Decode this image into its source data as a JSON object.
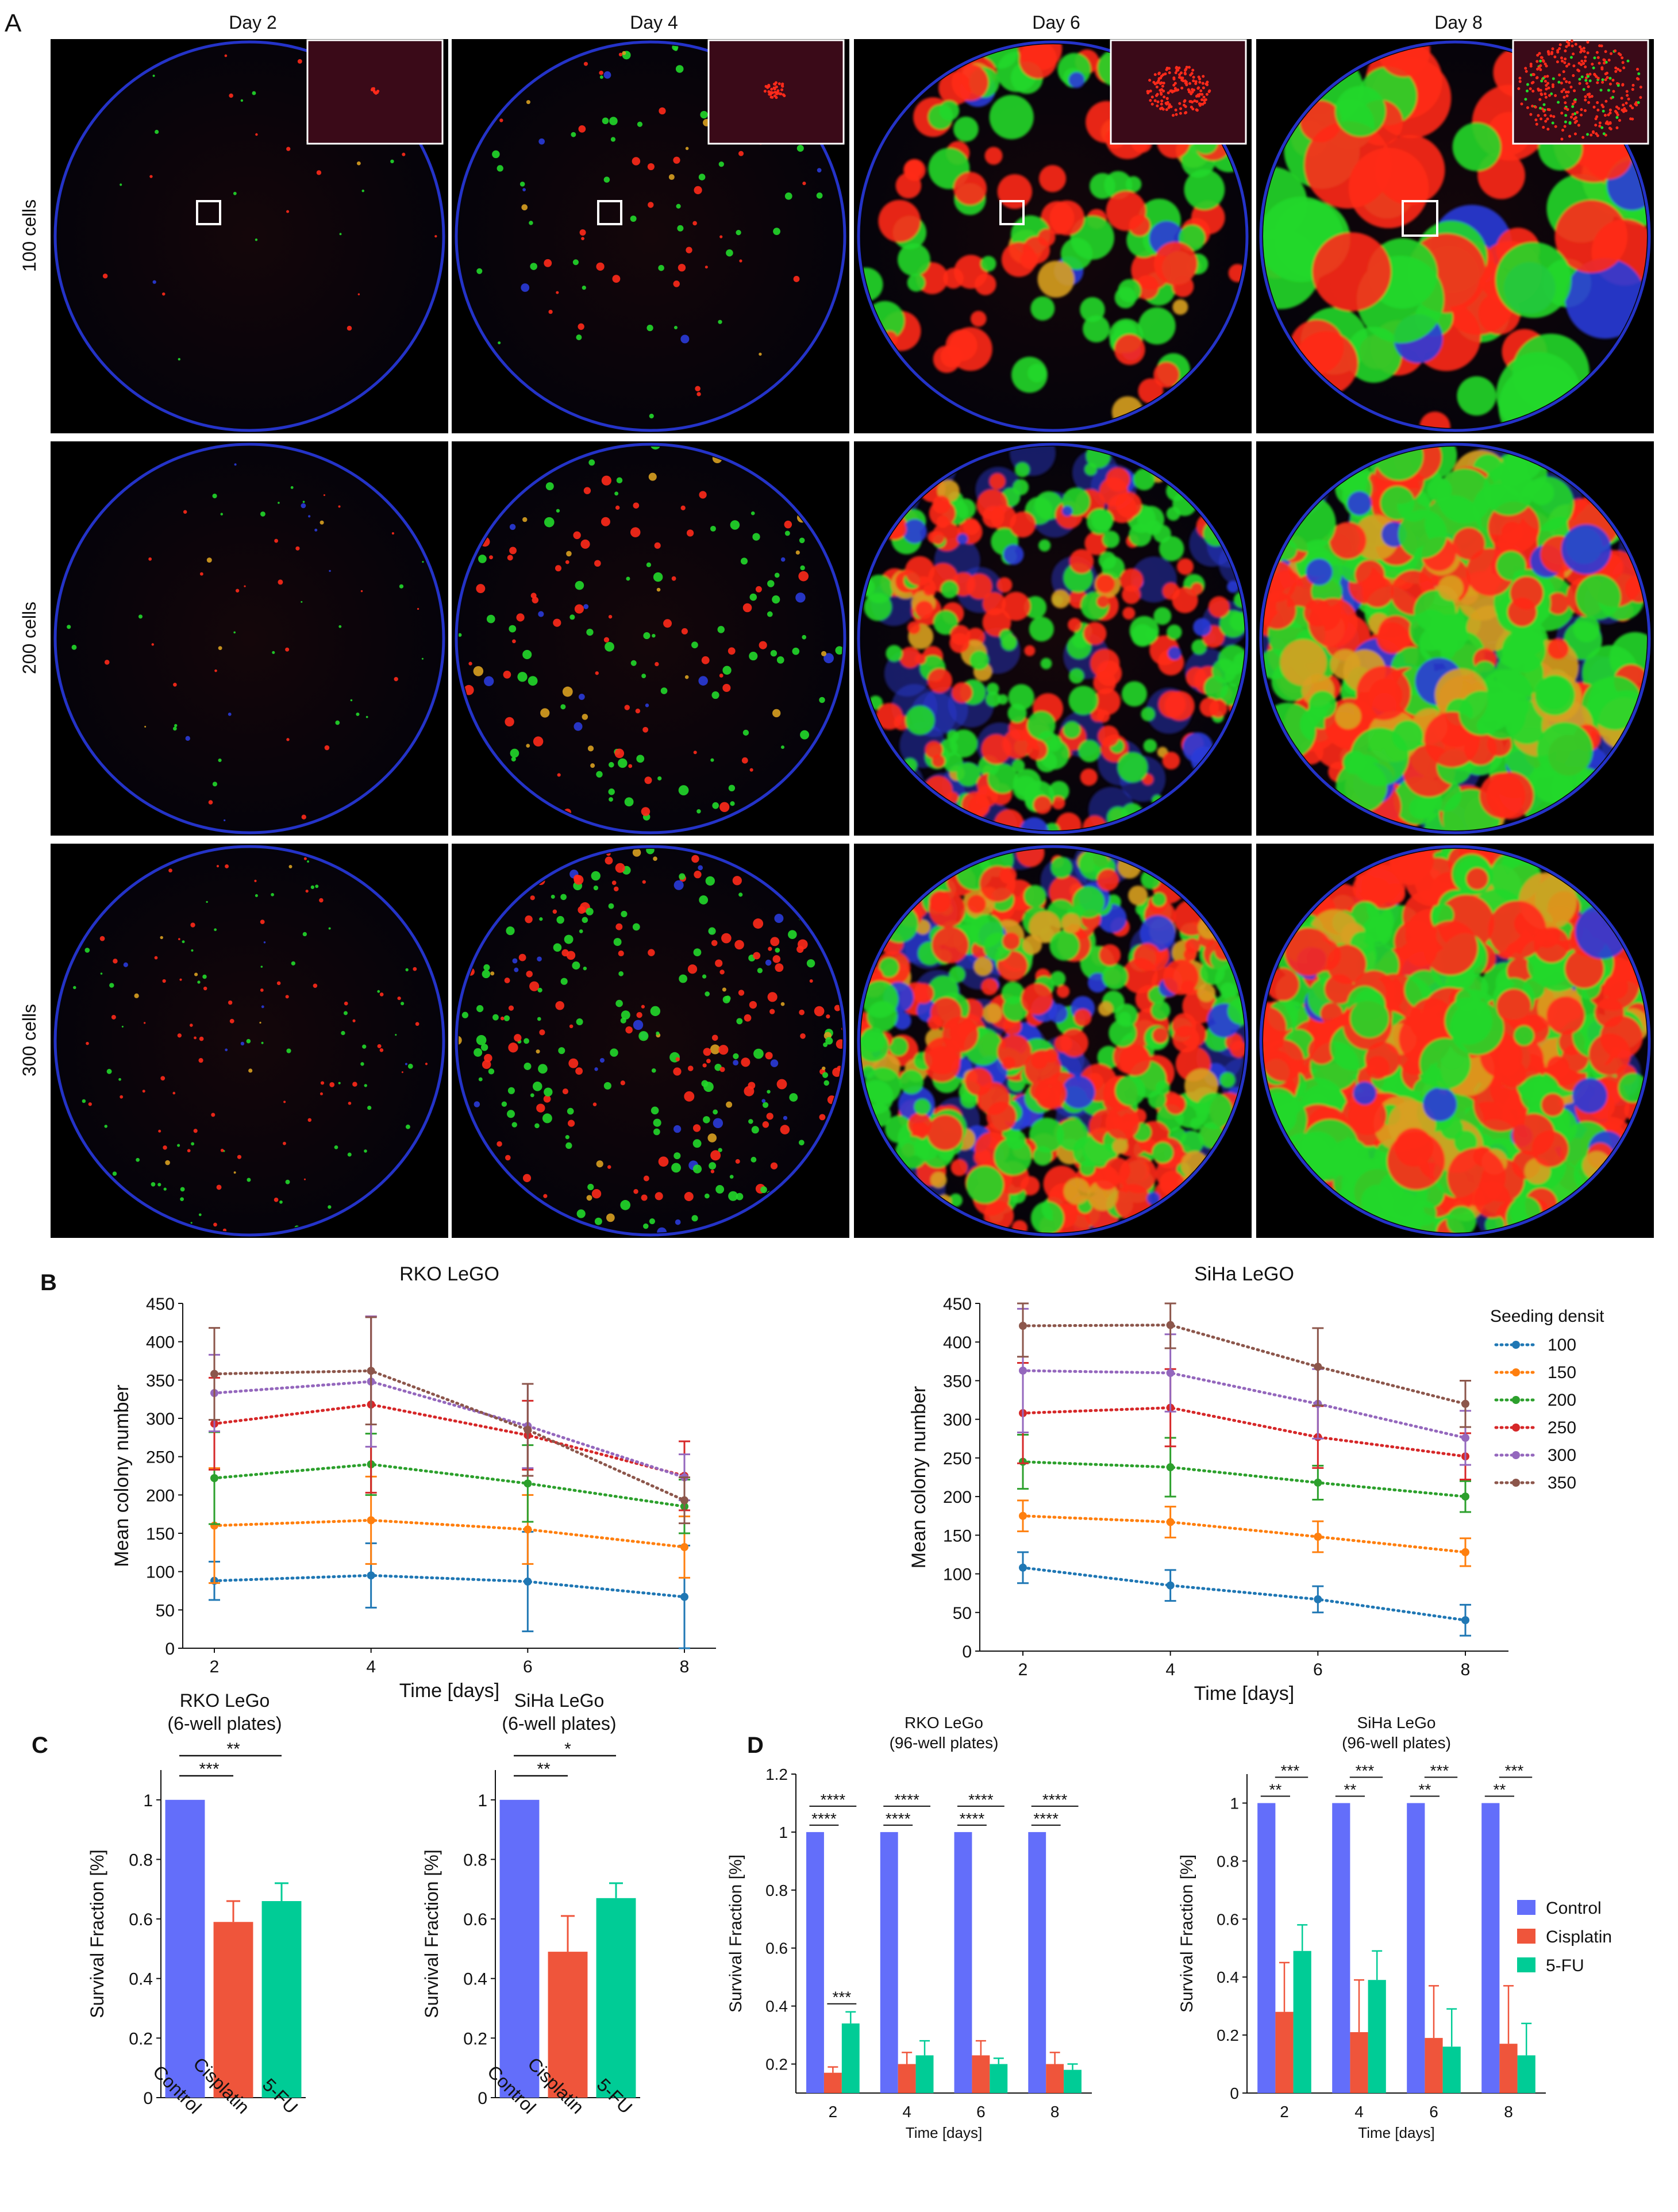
{
  "panel_letters": {
    "a": "A",
    "b": "B",
    "c": "C",
    "d": "D"
  },
  "panel_a": {
    "day_labels": [
      "Day 2",
      "Day 4",
      "Day 6",
      "Day 8"
    ],
    "row_labels": [
      "100 cells",
      "200 cells",
      "300 cells"
    ],
    "colors": {
      "red": "#ff2a1a",
      "green": "#22d82a",
      "blue": "#2a3bd8",
      "orange": "#d8a020",
      "well_rim": "#2433c8"
    },
    "insets_on_first_row": true
  },
  "panel_b": {
    "legend_title": "Seeding densit",
    "legend_labels": [
      "100",
      "150",
      "200",
      "250",
      "300",
      "350"
    ]
  },
  "colors": {
    "s100": "#1f77b4",
    "s150": "#ff7f0e",
    "s200": "#2ca02c",
    "s250": "#d62728",
    "s300": "#9467bd",
    "s350": "#8c564b",
    "control": "#636efa",
    "cisplatin": "#ef553b",
    "fu": "#00cc96"
  },
  "panel_d_legend": [
    "Control",
    "Cisplatin",
    "5-FU"
  ],
  "chart_data": [
    {
      "id": "b_rko",
      "type": "line",
      "title": "RKO LeGO",
      "xlabel": "Time [days]",
      "ylabel": "Mean colony number",
      "x": [
        2,
        4,
        6,
        8
      ],
      "ylim": [
        0,
        450
      ],
      "yticks": [
        0,
        50,
        100,
        150,
        200,
        250,
        300,
        350,
        400,
        450
      ],
      "series": [
        {
          "name": "100",
          "values": [
            88,
            95,
            87,
            67
          ],
          "errors": [
            25,
            42,
            65,
            67
          ]
        },
        {
          "name": "150",
          "values": [
            160,
            167,
            155,
            132
          ],
          "errors": [
            75,
            57,
            45,
            40
          ]
        },
        {
          "name": "200",
          "values": [
            222,
            240,
            215,
            185
          ],
          "errors": [
            60,
            40,
            50,
            35
          ]
        },
        {
          "name": "250",
          "values": [
            293,
            318,
            278,
            225
          ],
          "errors": [
            60,
            115,
            45,
            45
          ]
        },
        {
          "name": "300",
          "values": [
            333,
            348,
            290,
            223
          ],
          "errors": [
            50,
            85,
            55,
            30
          ]
        },
        {
          "name": "350",
          "values": [
            358,
            362,
            285,
            193
          ],
          "errors": [
            60,
            70,
            60,
            30
          ]
        }
      ]
    },
    {
      "id": "b_siha",
      "type": "line",
      "title": "SiHa LeGO",
      "xlabel": "Time [days]",
      "ylabel": "Mean colony number",
      "x": [
        2,
        4,
        6,
        8
      ],
      "ylim": [
        0,
        450
      ],
      "yticks": [
        0,
        50,
        100,
        150,
        200,
        250,
        300,
        350,
        400,
        450
      ],
      "legend": "right",
      "series": [
        {
          "name": "100",
          "values": [
            108,
            85,
            67,
            40
          ],
          "errors": [
            20,
            20,
            17,
            20
          ]
        },
        {
          "name": "150",
          "values": [
            175,
            167,
            148,
            128
          ],
          "errors": [
            20,
            20,
            20,
            18
          ]
        },
        {
          "name": "200",
          "values": [
            245,
            238,
            218,
            200
          ],
          "errors": [
            35,
            38,
            22,
            20
          ]
        },
        {
          "name": "250",
          "values": [
            308,
            315,
            277,
            252
          ],
          "errors": [
            65,
            50,
            40,
            30
          ]
        },
        {
          "name": "300",
          "values": [
            363,
            360,
            320,
            276
          ],
          "errors": [
            80,
            50,
            45,
            35
          ]
        },
        {
          "name": "350",
          "values": [
            421,
            422,
            368,
            320
          ],
          "errors": [
            40,
            30,
            50,
            30
          ]
        }
      ]
    },
    {
      "id": "c_rko",
      "type": "bar",
      "title": "RKO LeGo",
      "subtitle": "(6-well plates)",
      "ylabel": "Survival Fraction [%]",
      "categories": [
        "Control",
        "Cisplatin",
        "5-FU"
      ],
      "values": [
        1.0,
        0.59,
        0.66
      ],
      "errors": [
        0,
        0.07,
        0.06
      ],
      "ylim": [
        0,
        1.1
      ],
      "yticks": [
        0,
        0.2,
        0.4,
        0.6,
        0.8,
        1
      ],
      "ytick_labels": [
        "0",
        "0.2",
        "0.4",
        "0.6",
        "0.8",
        "1"
      ],
      "significance": [
        {
          "from": 0,
          "to": 1,
          "label": "***"
        },
        {
          "from": 0,
          "to": 2,
          "label": "**"
        }
      ]
    },
    {
      "id": "c_siha",
      "type": "bar",
      "title": "SiHa LeGo",
      "subtitle": "(6-well plates)",
      "ylabel": "Survival Fraction [%]",
      "categories": [
        "Control",
        "Cisplatin",
        "5-FU"
      ],
      "values": [
        1.0,
        0.49,
        0.67
      ],
      "errors": [
        0,
        0.12,
        0.05
      ],
      "ylim": [
        0,
        1.1
      ],
      "yticks": [
        0,
        0.2,
        0.4,
        0.6,
        0.8,
        1
      ],
      "ytick_labels": [
        "0",
        "0.2",
        "0.4",
        "0.6",
        "0.8",
        "1"
      ],
      "significance": [
        {
          "from": 0,
          "to": 1,
          "label": "**"
        },
        {
          "from": 0,
          "to": 2,
          "label": "*"
        }
      ]
    },
    {
      "id": "d_rko",
      "type": "bar",
      "title": "RKO LeGo",
      "subtitle": "(96-well plates)",
      "xlabel": "Time [days]",
      "ylabel": "Survival Fraction [%]",
      "categories": [
        "2",
        "4",
        "6",
        "8"
      ],
      "ylim": [
        0.1,
        1.2
      ],
      "yticks": [
        0.2,
        0.4,
        0.6,
        0.8,
        1,
        1.2
      ],
      "ytick_labels": [
        "0.2",
        "0.4",
        "0.6",
        "0.8",
        "1",
        "1.2"
      ],
      "series": [
        {
          "name": "Control",
          "values": [
            1.0,
            1.0,
            1.0,
            1.0
          ],
          "errors": [
            0,
            0,
            0,
            0
          ]
        },
        {
          "name": "Cisplatin",
          "values": [
            0.17,
            0.2,
            0.23,
            0.2
          ],
          "errors": [
            0.02,
            0.04,
            0.05,
            0.04
          ]
        },
        {
          "name": "5-FU",
          "values": [
            0.34,
            0.23,
            0.2,
            0.18
          ],
          "errors": [
            0.04,
            0.05,
            0.02,
            0.02
          ]
        }
      ],
      "significance_labels": [
        "****",
        "****",
        "***"
      ]
    },
    {
      "id": "d_siha",
      "type": "bar",
      "title": "SiHa LeGo",
      "subtitle": "(96-well plates)",
      "xlabel": "Time [days]",
      "ylabel": "Survival Fraction [%]",
      "categories": [
        "2",
        "4",
        "6",
        "8"
      ],
      "ylim": [
        0,
        1.1
      ],
      "yticks": [
        0,
        0.2,
        0.4,
        0.6,
        0.8,
        1
      ],
      "ytick_labels": [
        "0",
        "0.2",
        "0.4",
        "0.6",
        "0.8",
        "1"
      ],
      "legend": "right",
      "series": [
        {
          "name": "Control",
          "values": [
            1.0,
            1.0,
            1.0,
            1.0
          ],
          "errors": [
            0,
            0,
            0,
            0
          ]
        },
        {
          "name": "Cisplatin",
          "values": [
            0.28,
            0.21,
            0.19,
            0.17
          ],
          "errors": [
            0.17,
            0.18,
            0.18,
            0.2
          ]
        },
        {
          "name": "5-FU",
          "values": [
            0.49,
            0.39,
            0.16,
            0.13
          ],
          "errors": [
            0.09,
            0.1,
            0.13,
            0.11
          ]
        }
      ],
      "significance_labels": [
        "**",
        "***"
      ]
    }
  ]
}
